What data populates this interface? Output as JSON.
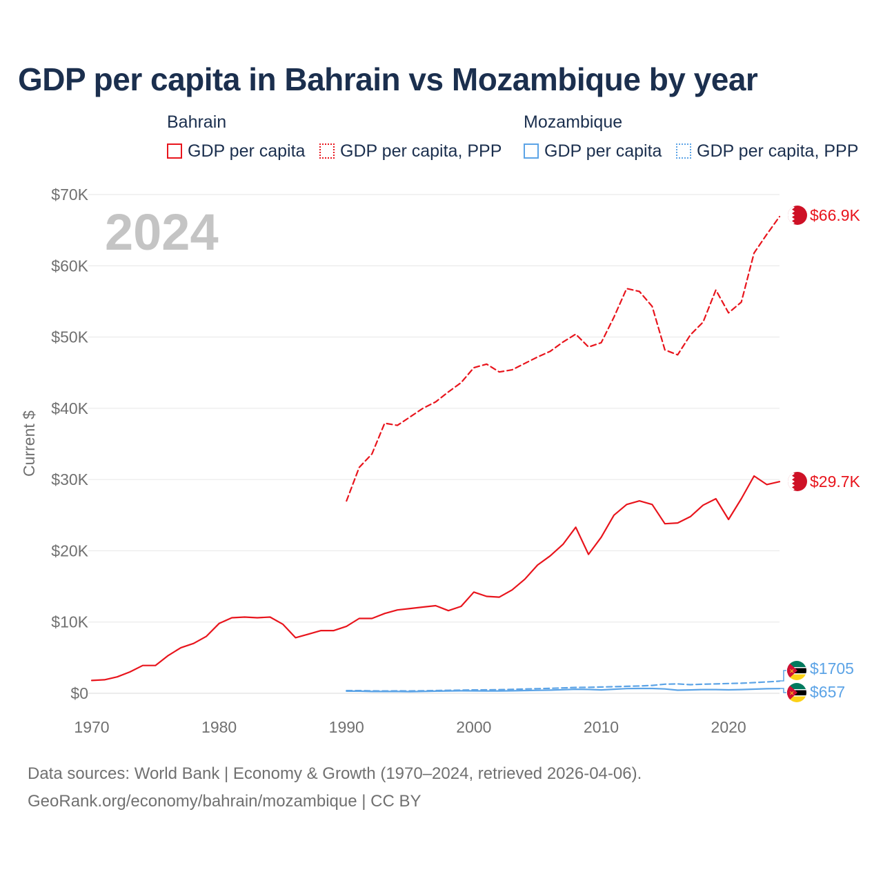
{
  "title": "GDP per capita in Bahrain vs Mozambique by year",
  "legend": {
    "groups": [
      {
        "country": "Bahrain",
        "items": [
          "GDP per capita",
          "GDP per capita, PPP"
        ]
      },
      {
        "country": "Mozambique",
        "items": [
          "GDP per capita",
          "GDP per capita, PPP"
        ]
      }
    ]
  },
  "year_watermark": "2024",
  "footer": {
    "line1": "Data sources: World Bank | Economy & Growth (1970–2024, retrieved 2026-04-06).",
    "line2": "GeoRank.org/economy/bahrain/mozambique | CC BY"
  },
  "colors": {
    "bahrain": "#e8141c",
    "mozambique": "#5ba3e6",
    "grid": "#e6e6e6",
    "axis_text": "#707070"
  },
  "chart_data": {
    "type": "line",
    "ylabel": "Current $",
    "xlim": [
      1970,
      2024
    ],
    "ylim": [
      0,
      70000
    ],
    "yticks": [
      0,
      10000,
      20000,
      30000,
      40000,
      50000,
      60000,
      70000
    ],
    "ytick_labels": [
      "$0",
      "$10K",
      "$20K",
      "$30K",
      "$40K",
      "$50K",
      "$60K",
      "$70K"
    ],
    "xticks": [
      1970,
      1980,
      1990,
      2000,
      2010,
      2020
    ],
    "xtick_labels": [
      "1970",
      "1980",
      "1990",
      "2000",
      "2010",
      "2020"
    ],
    "grid": true,
    "series": [
      {
        "name": "Bahrain GDP per capita",
        "country": "Bahrain",
        "style": "solid",
        "color": "#e8141c",
        "end_label": "$29.7K",
        "start_year": 1970,
        "values": [
          1800,
          1900,
          2300,
          3000,
          3900,
          3900,
          5300,
          6400,
          7000,
          8000,
          9800,
          10600,
          10700,
          10600,
          10700,
          9700,
          7800,
          8300,
          8800,
          8800,
          9400,
          10500,
          10500,
          11200,
          11700,
          11900,
          12100,
          12300,
          11600,
          12200,
          14200,
          13600,
          13500,
          14500,
          16000,
          18000,
          19300,
          20900,
          23300,
          19500,
          21900,
          25000,
          26500,
          27000,
          26500,
          23800,
          23900,
          24800,
          26400,
          27300,
          24400,
          27300,
          30500,
          29300,
          29700
        ]
      },
      {
        "name": "Bahrain GDP per capita, PPP",
        "country": "Bahrain",
        "style": "dashed",
        "color": "#e8141c",
        "end_label": "$66.9K",
        "start_year": 1990,
        "values": [
          27000,
          31700,
          33600,
          37900,
          37600,
          38800,
          40000,
          40900,
          42300,
          43600,
          45700,
          46200,
          45100,
          45400,
          46300,
          47200,
          48000,
          49300,
          50400,
          48600,
          49200,
          52800,
          56800,
          56400,
          54300,
          48200,
          47500,
          50300,
          52100,
          56600,
          53400,
          54900,
          61800,
          64400,
          66900
        ]
      },
      {
        "name": "Mozambique GDP per capita",
        "country": "Mozambique",
        "style": "solid",
        "color": "#5ba3e6",
        "end_label": "$657",
        "start_year": 1990,
        "values": [
          300,
          300,
          250,
          250,
          250,
          230,
          260,
          300,
          330,
          350,
          340,
          320,
          330,
          350,
          390,
          420,
          450,
          500,
          570,
          540,
          470,
          570,
          660,
          680,
          680,
          610,
          440,
          470,
          520,
          520,
          480,
          520,
          580,
          640,
          657
        ]
      },
      {
        "name": "Mozambique GDP per capita, PPP",
        "country": "Mozambique",
        "style": "dashed",
        "color": "#5ba3e6",
        "end_label": "$1705",
        "start_year": 1990,
        "values": [
          380,
          380,
          340,
          330,
          340,
          330,
          350,
          390,
          420,
          450,
          470,
          480,
          510,
          550,
          600,
          650,
          700,
          760,
          820,
          840,
          880,
          930,
          980,
          1030,
          1100,
          1280,
          1320,
          1210,
          1280,
          1320,
          1370,
          1410,
          1500,
          1600,
          1705
        ]
      }
    ]
  }
}
